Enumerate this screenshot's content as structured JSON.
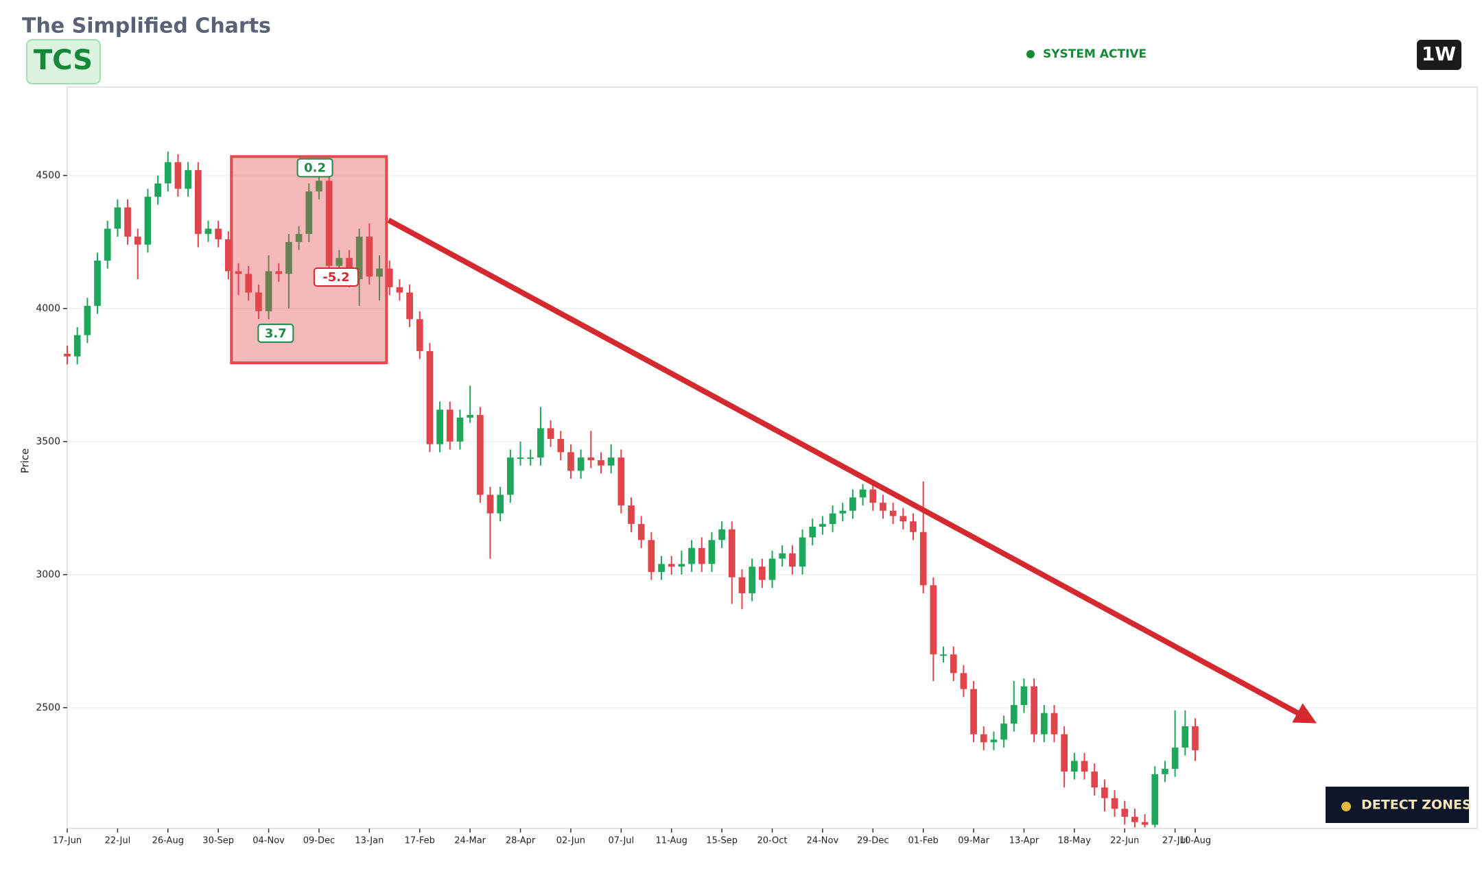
{
  "header": {
    "title": "The Simplified Charts",
    "symbol": "TCS",
    "status": "SYSTEM ACTIVE",
    "timeframe": "1W",
    "button": "DETECT ZONES"
  },
  "chart_data": {
    "type": "candlestick",
    "ylabel": "Price",
    "up_color": "#1ea65a",
    "down_color": "#e0454c",
    "grid": true,
    "ylim": [
      2046,
      4832
    ],
    "yticks": [
      2500,
      3000,
      3500,
      4000,
      4500
    ],
    "categories": [
      "17-Jun",
      null,
      null,
      null,
      null,
      "22-Jul",
      null,
      null,
      null,
      null,
      "26-Aug",
      null,
      null,
      null,
      null,
      "30-Sep",
      null,
      null,
      null,
      null,
      "04-Nov",
      null,
      null,
      null,
      null,
      "09-Dec",
      null,
      null,
      null,
      null,
      "13-Jan",
      null,
      null,
      null,
      null,
      "17-Feb",
      null,
      null,
      null,
      null,
      "24-Mar",
      null,
      null,
      null,
      null,
      "28-Apr",
      null,
      null,
      null,
      null,
      "02-Jun",
      null,
      null,
      null,
      null,
      "07-Jul",
      null,
      null,
      null,
      null,
      "11-Aug",
      null,
      null,
      null,
      null,
      "15-Sep",
      null,
      null,
      null,
      null,
      "20-Oct",
      null,
      null,
      null,
      null,
      "24-Nov",
      null,
      null,
      null,
      null,
      "29-Dec",
      null,
      null,
      null,
      null,
      "01-Feb",
      null,
      null,
      null,
      null,
      "09-Mar",
      null,
      null,
      null,
      null,
      "13-Apr",
      null,
      null,
      null,
      null,
      "18-May",
      null,
      null,
      null,
      null,
      "22-Jun",
      null,
      null,
      null,
      null,
      "27-Jul",
      null,
      "10-Aug"
    ],
    "open": [
      3830,
      3820,
      3900,
      4010,
      4180,
      4300,
      4380,
      4270,
      4240,
      4420,
      4470,
      4550,
      4450,
      4520,
      4280,
      4300,
      4260,
      4140,
      4130,
      4060,
      3990,
      4140,
      4130,
      4250,
      4280,
      4440,
      4480,
      4160,
      4190,
      4110,
      4270,
      4120,
      4150,
      4080,
      4060,
      3960,
      3840,
      3490,
      3620,
      3500,
      3590,
      3600,
      3300,
      3230,
      3300,
      3440,
      3440,
      3440,
      3550,
      3510,
      3460,
      3390,
      3440,
      3430,
      3410,
      3440,
      3260,
      3190,
      3130,
      3010,
      3040,
      3030,
      3040,
      3100,
      3040,
      3130,
      3170,
      2990,
      2930,
      3030,
      2980,
      3060,
      3080,
      3030,
      3140,
      3180,
      3190,
      3230,
      3240,
      3290,
      3320,
      3270,
      3240,
      3220,
      3200,
      3160,
      2960,
      2700,
      2700,
      2630,
      2570,
      2400,
      2370,
      2380,
      2440,
      2510,
      2580,
      2400,
      2480,
      2400,
      2260,
      2300,
      2260,
      2200,
      2160,
      2120,
      2090,
      2070,
      2060,
      2250,
      2270,
      2350,
      2430
    ],
    "high": [
      3860,
      3930,
      4040,
      4210,
      4330,
      4410,
      4410,
      4300,
      4450,
      4500,
      4590,
      4580,
      4550,
      4550,
      4330,
      4330,
      4290,
      4170,
      4160,
      4090,
      4200,
      4170,
      4280,
      4310,
      4470,
      4510,
      4510,
      4220,
      4220,
      4300,
      4320,
      4200,
      4180,
      4110,
      4090,
      3990,
      3870,
      3650,
      3650,
      3620,
      3710,
      3630,
      3330,
      3330,
      3470,
      3500,
      3470,
      3630,
      3580,
      3540,
      3490,
      3470,
      3540,
      3460,
      3490,
      3470,
      3290,
      3220,
      3160,
      3070,
      3070,
      3090,
      3130,
      3140,
      3160,
      3200,
      3200,
      3020,
      3060,
      3060,
      3090,
      3110,
      3110,
      3170,
      3210,
      3220,
      3260,
      3270,
      3320,
      3340,
      3350,
      3300,
      3270,
      3250,
      3230,
      3350,
      2990,
      2730,
      2730,
      2660,
      2600,
      2430,
      2410,
      2470,
      2600,
      2610,
      2610,
      2510,
      2510,
      2430,
      2330,
      2330,
      2290,
      2230,
      2190,
      2150,
      2120,
      2100,
      2280,
      2300,
      2490,
      2490,
      2460
    ],
    "low": [
      3790,
      3790,
      3870,
      3980,
      4150,
      4270,
      4240,
      4110,
      4210,
      4390,
      4440,
      4420,
      4420,
      4230,
      4250,
      4230,
      4110,
      4050,
      4030,
      3960,
      3960,
      4100,
      4000,
      4220,
      4250,
      4410,
      4130,
      4130,
      4080,
      4010,
      4090,
      4030,
      4050,
      4030,
      3930,
      3810,
      3460,
      3460,
      3470,
      3470,
      3570,
      3270,
      3060,
      3200,
      3270,
      3410,
      3410,
      3410,
      3480,
      3430,
      3360,
      3360,
      3400,
      3380,
      3380,
      3230,
      3160,
      3100,
      2980,
      2980,
      3000,
      3000,
      3010,
      3010,
      3010,
      3100,
      2890,
      2870,
      2900,
      2950,
      2950,
      3030,
      3000,
      3000,
      3110,
      3150,
      3160,
      3200,
      3210,
      3260,
      3240,
      3210,
      3190,
      3170,
      3130,
      2930,
      2600,
      2670,
      2600,
      2540,
      2370,
      2340,
      2340,
      2350,
      2410,
      2480,
      2370,
      2370,
      2370,
      2200,
      2230,
      2230,
      2170,
      2110,
      2090,
      2060,
      2050,
      2050,
      2050,
      2220,
      2240,
      2320,
      2300
    ],
    "close": [
      3820,
      3900,
      4010,
      4180,
      4300,
      4380,
      4270,
      4240,
      4420,
      4470,
      4550,
      4450,
      4520,
      4280,
      4300,
      4260,
      4140,
      4130,
      4060,
      3990,
      4140,
      4130,
      4250,
      4280,
      4440,
      4480,
      4160,
      4190,
      4110,
      4270,
      4120,
      4150,
      4080,
      4060,
      3960,
      3840,
      3490,
      3620,
      3500,
      3590,
      3600,
      3300,
      3230,
      3300,
      3440,
      3440,
      3440,
      3550,
      3510,
      3460,
      3390,
      3440,
      3430,
      3410,
      3440,
      3260,
      3190,
      3130,
      3010,
      3040,
      3030,
      3040,
      3100,
      3040,
      3130,
      3170,
      2990,
      2930,
      3030,
      2980,
      3060,
      3080,
      3030,
      3140,
      3180,
      3190,
      3230,
      3240,
      3290,
      3320,
      3270,
      3240,
      3220,
      3200,
      3160,
      2960,
      2700,
      2700,
      2630,
      2570,
      2400,
      2370,
      2380,
      2440,
      2510,
      2580,
      2400,
      2480,
      2400,
      2260,
      2300,
      2260,
      2200,
      2160,
      2120,
      2090,
      2070,
      2060,
      2250,
      2270,
      2350,
      2430,
      2340
    ],
    "zone": {
      "x": [
        16.3,
        31.7
      ],
      "y": [
        3796,
        4571
      ],
      "color": "#e5484d"
    },
    "trendline": {
      "start": {
        "x": 31.9,
        "y": 4332
      },
      "end": {
        "x": 123.3,
        "y": 2457
      },
      "color": "#d42a2f"
    },
    "annotations": [
      {
        "text": "0.2",
        "x": 24.6,
        "y": 4529,
        "color": "#1e8a48"
      },
      {
        "text": "3.7",
        "x": 20.7,
        "y": 3907,
        "color": "#1e8a48"
      },
      {
        "text": "-5.2",
        "x": 26.7,
        "y": 4118,
        "color": "#d42a2f"
      }
    ]
  }
}
